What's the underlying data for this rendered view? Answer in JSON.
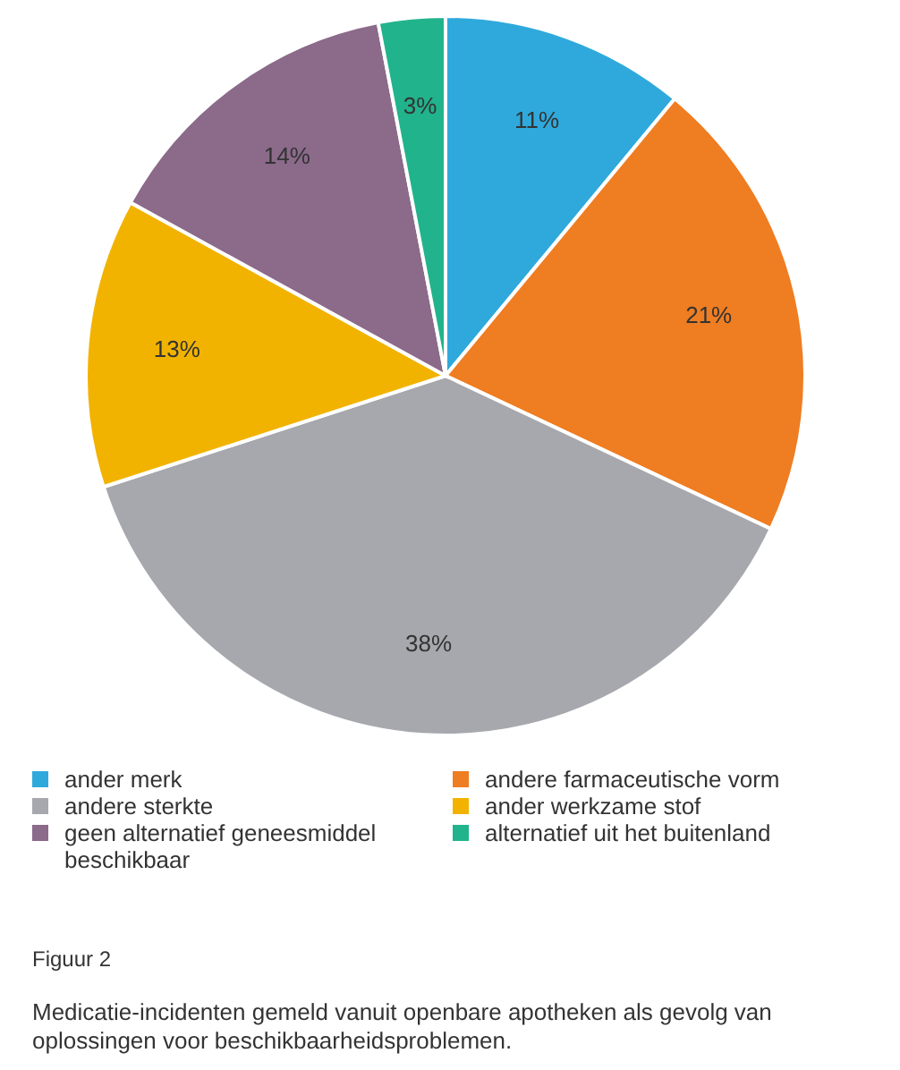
{
  "chart_data": {
    "type": "pie",
    "categories": [
      "ander merk",
      "andere farmaceutische vorm",
      "andere sterkte",
      "ander werkzame stof",
      "geen alternatief geneesmiddel beschikbaar",
      "alternatief uit het buitenland"
    ],
    "values": [
      11,
      21,
      38,
      13,
      14,
      3
    ],
    "colors": [
      "#2fa9dc",
      "#ef7d22",
      "#a7a8ad",
      "#f1b300",
      "#8b6a8a",
      "#21b38c"
    ],
    "value_labels": [
      "11%",
      "21%",
      "38%",
      "13%",
      "14%",
      "3%"
    ],
    "legend": "bottom",
    "annotations": [
      "Figuur 2",
      "Medicatie-incidenten gemeld vanuit openbare apotheken als gevolg van oplossingen voor beschikbaarheidsproblemen."
    ]
  }
}
